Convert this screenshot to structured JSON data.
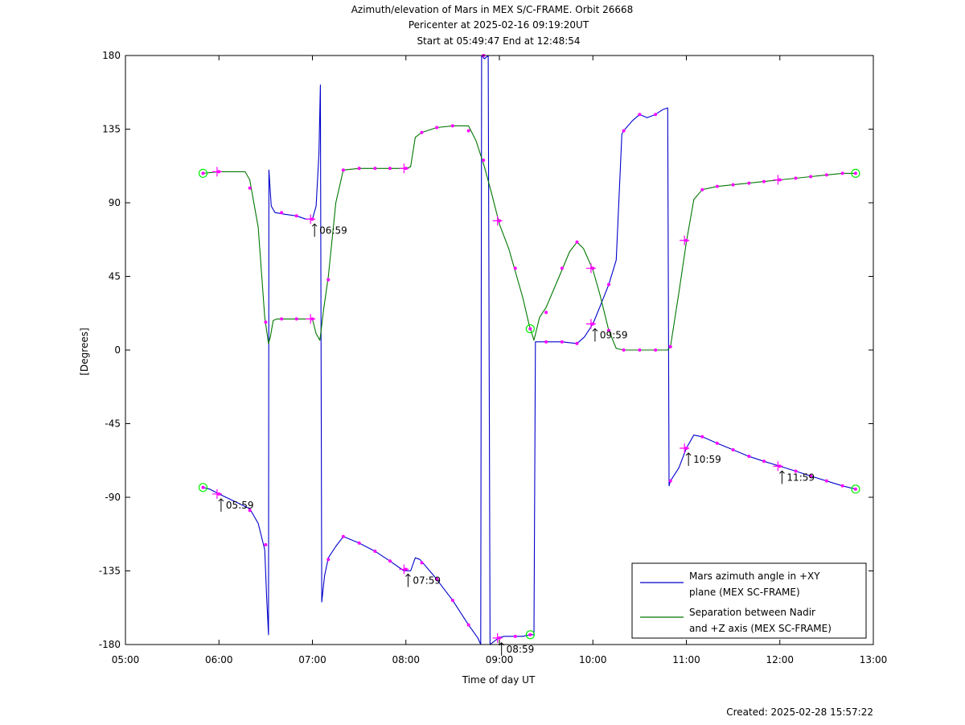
{
  "chart_data": {
    "type": "line",
    "title_lines": [
      "Azimuth/elevation of Mars in MEX S/C-FRAME.  Orbit 26668",
      "Pericenter at 2025-02-16 09:19:20UT",
      "Start at 05:49:47 End at 12:48:54"
    ],
    "xlabel": "Time of day UT",
    "ylabel": "[Degrees]",
    "xlim": [
      5.0,
      13.0
    ],
    "ylim": [
      -180,
      180
    ],
    "x_ticks": [
      {
        "v": 5,
        "label": "05:00"
      },
      {
        "v": 6,
        "label": "06:00"
      },
      {
        "v": 7,
        "label": "07:00"
      },
      {
        "v": 8,
        "label": "08:00"
      },
      {
        "v": 9,
        "label": "09:00"
      },
      {
        "v": 10,
        "label": "10:00"
      },
      {
        "v": 11,
        "label": "11:00"
      },
      {
        "v": 12,
        "label": "12:00"
      },
      {
        "v": 13,
        "label": "13:00"
      }
    ],
    "y_ticks": [
      {
        "v": 180,
        "label": "180"
      },
      {
        "v": 135,
        "label": "135"
      },
      {
        "v": 90,
        "label": "90"
      },
      {
        "v": 45,
        "label": "45"
      },
      {
        "v": 0,
        "label": "0"
      },
      {
        "v": -45,
        "label": "-45"
      },
      {
        "v": -90,
        "label": "-90"
      },
      {
        "v": -135,
        "label": "-135"
      },
      {
        "v": -180,
        "label": "-180"
      }
    ],
    "grid": false,
    "legend_position": "bottom-right",
    "series": [
      {
        "name": "Mars azimuth angle in +XY plane (MEX SC-FRAME)",
        "legend_lines": [
          "Mars azimuth angle in +XY",
          "plane (MEX SC-FRAME)"
        ],
        "color": "#0000cc",
        "points": [
          [
            5.83,
            -84
          ],
          [
            5.9,
            -85
          ],
          [
            6.0,
            -88
          ],
          [
            6.15,
            -92
          ],
          [
            6.33,
            -97
          ],
          [
            6.42,
            -106
          ],
          [
            6.49,
            -122
          ],
          [
            6.51,
            -150
          ],
          [
            6.53,
            -174
          ],
          [
            6.535,
            110
          ],
          [
            6.56,
            88
          ],
          [
            6.6,
            84
          ],
          [
            6.7,
            83
          ],
          [
            6.83,
            82
          ],
          [
            6.93,
            80
          ],
          [
            7.0,
            80
          ],
          [
            7.04,
            88
          ],
          [
            7.07,
            120
          ],
          [
            7.085,
            162
          ],
          [
            7.1,
            -154
          ],
          [
            7.13,
            -138
          ],
          [
            7.17,
            -127
          ],
          [
            7.25,
            -120
          ],
          [
            7.33,
            -114
          ],
          [
            7.5,
            -118
          ],
          [
            7.67,
            -123
          ],
          [
            7.83,
            -129
          ],
          [
            7.98,
            -135
          ],
          [
            8.05,
            -135
          ],
          [
            8.1,
            -127
          ],
          [
            8.15,
            -128
          ],
          [
            8.3,
            -138
          ],
          [
            8.5,
            -153
          ],
          [
            8.67,
            -168
          ],
          [
            8.77,
            -176
          ],
          [
            8.8,
            -180
          ],
          [
            8.81,
            180
          ],
          [
            8.84,
            178
          ],
          [
            8.88,
            180
          ],
          [
            8.9,
            -180
          ],
          [
            8.99,
            -176
          ],
          [
            9.05,
            -175
          ],
          [
            9.15,
            -175
          ],
          [
            9.25,
            -175
          ],
          [
            9.33,
            -174
          ],
          [
            9.37,
            -174
          ],
          [
            9.385,
            5
          ],
          [
            9.5,
            5
          ],
          [
            9.67,
            5
          ],
          [
            9.83,
            4
          ],
          [
            9.91,
            8
          ],
          [
            10.0,
            16
          ],
          [
            10.08,
            27
          ],
          [
            10.17,
            40
          ],
          [
            10.25,
            55
          ],
          [
            10.31,
            132
          ],
          [
            10.33,
            134
          ],
          [
            10.42,
            140
          ],
          [
            10.5,
            144
          ],
          [
            10.58,
            142
          ],
          [
            10.67,
            144
          ],
          [
            10.75,
            147
          ],
          [
            10.8,
            148
          ],
          [
            10.815,
            -83
          ],
          [
            10.83,
            -80
          ],
          [
            10.92,
            -72
          ],
          [
            11.0,
            -60
          ],
          [
            11.08,
            -52
          ],
          [
            11.17,
            -53
          ],
          [
            11.33,
            -57
          ],
          [
            11.5,
            -61
          ],
          [
            11.67,
            -65
          ],
          [
            11.83,
            -68
          ],
          [
            12.0,
            -71
          ],
          [
            12.17,
            -74
          ],
          [
            12.33,
            -77
          ],
          [
            12.5,
            -80
          ],
          [
            12.67,
            -83
          ],
          [
            12.81,
            -85
          ]
        ]
      },
      {
        "name": "Separation between Nadir and +Z axis (MEX SC-FRAME)",
        "legend_lines": [
          "Separation between Nadir",
          "and +Z axis (MEX SC-FRAME)"
        ],
        "color": "#007700",
        "points": [
          [
            5.83,
            108
          ],
          [
            6.0,
            109
          ],
          [
            6.15,
            109
          ],
          [
            6.28,
            109
          ],
          [
            6.33,
            104
          ],
          [
            6.42,
            75
          ],
          [
            6.49,
            20
          ],
          [
            6.53,
            4
          ],
          [
            6.55,
            8
          ],
          [
            6.58,
            18
          ],
          [
            6.62,
            19
          ],
          [
            6.83,
            19
          ],
          [
            7.0,
            19
          ],
          [
            7.04,
            10
          ],
          [
            7.08,
            6
          ],
          [
            7.12,
            25
          ],
          [
            7.17,
            45
          ],
          [
            7.25,
            90
          ],
          [
            7.33,
            110
          ],
          [
            7.5,
            111
          ],
          [
            7.67,
            111
          ],
          [
            7.83,
            111
          ],
          [
            8.0,
            111
          ],
          [
            8.05,
            112
          ],
          [
            8.1,
            130
          ],
          [
            8.17,
            133
          ],
          [
            8.33,
            136
          ],
          [
            8.5,
            137
          ],
          [
            8.67,
            137
          ],
          [
            8.75,
            128
          ],
          [
            8.84,
            112
          ],
          [
            8.92,
            95
          ],
          [
            9.0,
            77
          ],
          [
            9.1,
            62
          ],
          [
            9.17,
            48
          ],
          [
            9.25,
            32
          ],
          [
            9.32,
            15
          ],
          [
            9.37,
            6
          ],
          [
            9.43,
            20
          ],
          [
            9.5,
            26
          ],
          [
            9.67,
            49
          ],
          [
            9.75,
            60
          ],
          [
            9.83,
            66
          ],
          [
            9.9,
            62
          ],
          [
            10.0,
            49
          ],
          [
            10.08,
            33
          ],
          [
            10.17,
            12
          ],
          [
            10.25,
            1
          ],
          [
            10.33,
            0
          ],
          [
            10.5,
            0
          ],
          [
            10.67,
            0
          ],
          [
            10.8,
            0
          ],
          [
            10.83,
            2
          ],
          [
            10.92,
            35
          ],
          [
            11.0,
            66
          ],
          [
            11.08,
            92
          ],
          [
            11.17,
            98
          ],
          [
            11.33,
            100
          ],
          [
            11.5,
            101
          ],
          [
            11.67,
            102
          ],
          [
            11.83,
            103
          ],
          [
            12.0,
            104
          ],
          [
            12.17,
            105
          ],
          [
            12.33,
            106
          ],
          [
            12.5,
            107
          ],
          [
            12.67,
            108
          ],
          [
            12.81,
            108
          ]
        ]
      }
    ],
    "markers": [
      [
        5.83,
        108
      ],
      [
        6.0,
        109
      ],
      [
        6.33,
        99
      ],
      [
        6.5,
        17
      ],
      [
        6.67,
        19
      ],
      [
        6.83,
        19
      ],
      [
        7.0,
        19
      ],
      [
        7.17,
        43
      ],
      [
        7.33,
        110
      ],
      [
        7.5,
        111
      ],
      [
        7.67,
        111
      ],
      [
        7.83,
        111
      ],
      [
        8.0,
        111
      ],
      [
        8.17,
        133
      ],
      [
        8.33,
        136
      ],
      [
        8.5,
        137
      ],
      [
        8.67,
        134
      ],
      [
        8.83,
        116
      ],
      [
        9.0,
        79
      ],
      [
        9.17,
        50
      ],
      [
        9.33,
        13
      ],
      [
        9.5,
        23
      ],
      [
        9.67,
        50
      ],
      [
        9.83,
        66
      ],
      [
        10.0,
        50
      ],
      [
        10.17,
        12
      ],
      [
        10.33,
        0
      ],
      [
        10.5,
        0
      ],
      [
        10.67,
        0
      ],
      [
        10.83,
        2
      ],
      [
        11.0,
        67
      ],
      [
        11.17,
        98
      ],
      [
        11.33,
        100
      ],
      [
        11.5,
        101
      ],
      [
        11.67,
        102
      ],
      [
        11.83,
        103
      ],
      [
        12.0,
        104
      ],
      [
        12.17,
        105
      ],
      [
        12.33,
        106
      ],
      [
        12.5,
        107
      ],
      [
        12.67,
        108
      ],
      [
        12.81,
        108
      ],
      [
        5.83,
        -84
      ],
      [
        6.0,
        -88
      ],
      [
        6.33,
        -98
      ],
      [
        6.5,
        -119
      ],
      [
        6.67,
        84
      ],
      [
        6.83,
        82
      ],
      [
        7.0,
        80
      ],
      [
        7.17,
        -128
      ],
      [
        7.33,
        -114
      ],
      [
        7.5,
        -118
      ],
      [
        7.67,
        -123
      ],
      [
        7.83,
        -129
      ],
      [
        8.0,
        -134
      ],
      [
        8.17,
        -130
      ],
      [
        8.33,
        -140
      ],
      [
        8.5,
        -153
      ],
      [
        8.67,
        -168
      ],
      [
        8.83,
        180
      ],
      [
        9.0,
        -176
      ],
      [
        9.17,
        -175
      ],
      [
        9.33,
        -174
      ],
      [
        9.5,
        5
      ],
      [
        9.67,
        5
      ],
      [
        9.83,
        4
      ],
      [
        10.0,
        16
      ],
      [
        10.17,
        40
      ],
      [
        10.33,
        134
      ],
      [
        10.5,
        144
      ],
      [
        10.67,
        144
      ],
      [
        10.83,
        -80
      ],
      [
        11.0,
        -60
      ],
      [
        11.17,
        -53
      ],
      [
        11.33,
        -57
      ],
      [
        11.5,
        -61
      ],
      [
        11.67,
        -65
      ],
      [
        11.83,
        -68
      ],
      [
        12.0,
        -71
      ],
      [
        12.17,
        -74
      ],
      [
        12.33,
        -77
      ],
      [
        12.5,
        -80
      ],
      [
        12.67,
        -83
      ],
      [
        12.81,
        -85
      ]
    ],
    "hour_crosses": [
      [
        5.98,
        109
      ],
      [
        5.98,
        -88
      ],
      [
        6.98,
        80
      ],
      [
        6.98,
        19
      ],
      [
        7.98,
        111
      ],
      [
        7.98,
        -134
      ],
      [
        8.98,
        79
      ],
      [
        8.98,
        -176
      ],
      [
        9.98,
        50
      ],
      [
        9.98,
        16
      ],
      [
        10.98,
        67
      ],
      [
        10.98,
        -60
      ],
      [
        11.98,
        104
      ],
      [
        11.98,
        -71
      ]
    ],
    "endpoint_circles": [
      [
        5.83,
        108
      ],
      [
        5.83,
        -84
      ],
      [
        9.33,
        13
      ],
      [
        9.33,
        -174
      ],
      [
        12.81,
        108
      ],
      [
        12.81,
        -85
      ]
    ],
    "annotations": [
      {
        "x": 5.98,
        "y": -88,
        "text": "05:59"
      },
      {
        "x": 6.98,
        "y": 80,
        "text": "06:59"
      },
      {
        "x": 7.98,
        "y": -134,
        "text": "07:59"
      },
      {
        "x": 8.98,
        "y": -176,
        "text": "08:59"
      },
      {
        "x": 9.98,
        "y": 16,
        "text": "09:59"
      },
      {
        "x": 10.98,
        "y": -60,
        "text": "10:59"
      },
      {
        "x": 11.98,
        "y": -71,
        "text": "11:59"
      }
    ],
    "marker_color": "#ff00ff",
    "circle_color": "#00ee00"
  },
  "footer": {
    "created": "Created: 2025-02-28 15:57:22"
  }
}
